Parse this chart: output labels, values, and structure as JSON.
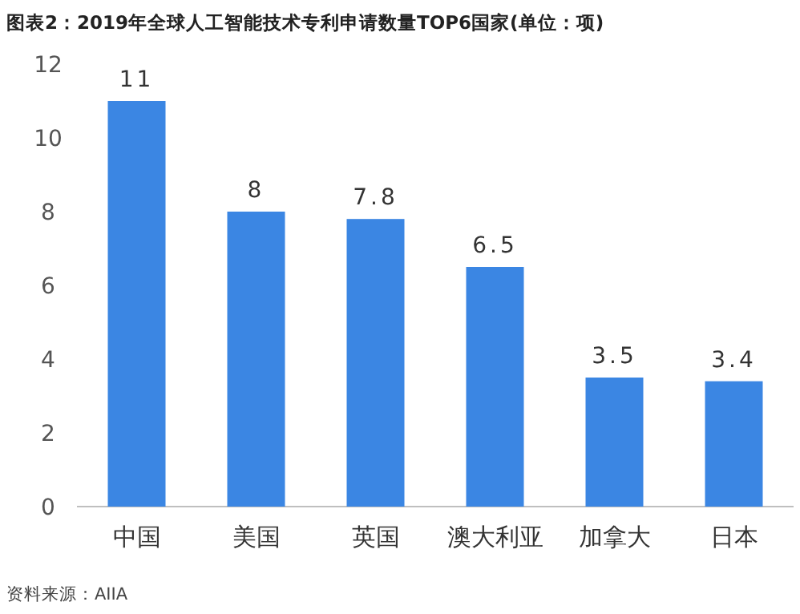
{
  "chart_data": {
    "type": "bar",
    "title": "图表2：2019年全球人工智能技术专利申请数量TOP6国家(单位：项)",
    "categories": [
      "中国",
      "美国",
      "英国",
      "澳大利亚",
      "加拿大",
      "日本"
    ],
    "values": [
      11,
      8,
      7.8,
      6.5,
      3.5,
      3.4
    ],
    "value_labels": [
      "11",
      "8",
      "7.8",
      "6.5",
      "3.5",
      "3.4"
    ],
    "color": "#3b86e3",
    "ylim": [
      0,
      12
    ],
    "yticks": [
      0,
      2,
      4,
      6,
      8,
      10,
      12
    ],
    "annotations": [
      "资料来源：AIIA"
    ]
  }
}
